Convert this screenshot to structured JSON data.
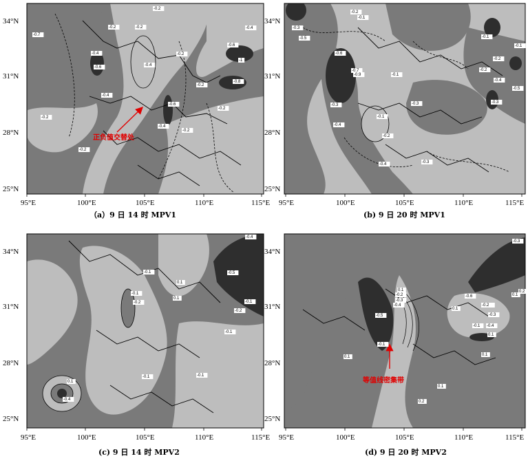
{
  "axes": {
    "lat_labels": [
      "34°N",
      "31°N",
      "28°N",
      "25°N"
    ],
    "lon_labels": [
      "95°E",
      "100°E",
      "105°E",
      "110°E",
      "115°E"
    ]
  },
  "panels": [
    {
      "caption": "（a）9 日 14 时 MPV1",
      "annotation": "正负值交替处",
      "labels": [
        "-0.7",
        "-0.2",
        "-0.4",
        "-0.6",
        "-0.2",
        "-0.4",
        "-0.2",
        "-0.6",
        "-1",
        "-0.8",
        "-0.4",
        "-0.2",
        "-0.6",
        "-0.4",
        "-0.2",
        "-0.4",
        "-0.2",
        "-0.2",
        "-0.2",
        "-0.2"
      ]
    },
    {
      "caption": "(b) 9 日 20 时 MPV1",
      "annotation": "",
      "labels": [
        "-0.2",
        "-0.1",
        "-0.3",
        "-0.5",
        "-0.6",
        "-0.7",
        "-0.9",
        "-0.3",
        "-0.4",
        "-0.1",
        "-0.2",
        "-0.3",
        "-0.4",
        "-0.3",
        "-0.1",
        "-0.1",
        "-0.2",
        "-0.1",
        "-0.2",
        "-0.4",
        "-0.3",
        "-0.5"
      ]
    },
    {
      "caption": "(c) 9 日 14 时 MPV2",
      "annotation": "",
      "labels": [
        "-0.4",
        "-0.5",
        "-0.2",
        "-0.1",
        "0.1",
        "0.1",
        "-0.1",
        "0.1",
        "-0.2",
        "-0.4",
        "-0.1",
        "-0.1",
        "-0.1",
        "-0.1"
      ]
    },
    {
      "caption": "(d) 9 日 20 时 MPV2",
      "annotation": "等值线密集带",
      "labels": [
        "-0.3",
        "0.1",
        "-0.2",
        "-0.3",
        "-0.4",
        "-0.5",
        "0.1",
        "0.1",
        "0.2",
        "-0.6",
        "-0.3",
        "-0.4",
        "0.1",
        "0.2",
        "-0.2",
        "-0.1",
        "0.1",
        "0.1",
        "-0.1",
        "0.2",
        "0.1"
      ]
    }
  ],
  "colors": {
    "dark": "#2e2e2e",
    "mid": "#7a7a7a",
    "light": "#bdbdbd",
    "annotation": "#e00000"
  }
}
